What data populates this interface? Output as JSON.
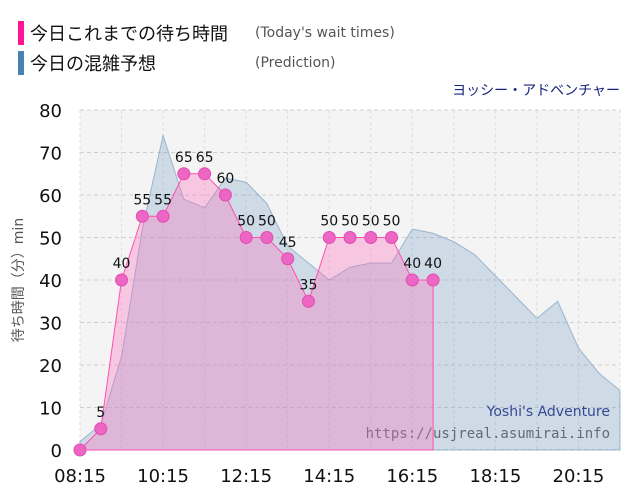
{
  "legend": {
    "today": {
      "label": "今日これまでの待ち時間",
      "note": "(Today's wait times)",
      "color": "#ff1493"
    },
    "prediction": {
      "label": "今日の混雑予想",
      "note": "(Prediction)",
      "color": "#4682b4"
    }
  },
  "attraction": "ヨッシー・アドベンチャー",
  "watermark": {
    "name": "Yoshi's Adventure",
    "url": "https://usjreal.asumirai.info"
  },
  "chart_data": {
    "type": "area",
    "ylabel": "待ち時間（分）min",
    "ylim": [
      0,
      80
    ],
    "xlim": [
      "08:15",
      "21:15"
    ],
    "x_ticks": [
      "08:15",
      "10:15",
      "12:15",
      "14:15",
      "16:15",
      "18:15",
      "20:15"
    ],
    "y_ticks": [
      0,
      10,
      20,
      30,
      40,
      50,
      60,
      70,
      80
    ],
    "grid": true,
    "series": [
      {
        "name": "今日これまでの待ち時間",
        "color": "#ff1493",
        "x": [
          "08:15",
          "08:45",
          "09:15",
          "09:45",
          "10:15",
          "10:45",
          "11:15",
          "11:45",
          "12:15",
          "12:45",
          "13:15",
          "13:45",
          "14:15",
          "14:45",
          "15:15",
          "15:45",
          "16:15",
          "16:45"
        ],
        "values": [
          0,
          5,
          40,
          55,
          55,
          65,
          65,
          60,
          50,
          50,
          45,
          35,
          50,
          50,
          50,
          50,
          40,
          40
        ]
      },
      {
        "name": "今日の混雑予想",
        "color": "#4682b4",
        "x": [
          "08:15",
          "08:45",
          "09:15",
          "09:45",
          "10:15",
          "10:45",
          "11:15",
          "11:45",
          "12:15",
          "12:45",
          "13:15",
          "13:45",
          "14:15",
          "14:45",
          "15:15",
          "15:45",
          "16:15",
          "16:45",
          "17:15",
          "17:45",
          "18:15",
          "18:45",
          "19:15",
          "19:45",
          "20:15",
          "20:45",
          "21:15"
        ],
        "values": [
          2,
          6,
          22,
          52,
          74,
          59,
          57,
          64,
          63,
          58,
          48,
          44,
          40,
          43,
          44,
          44,
          52,
          51,
          49,
          46,
          41,
          36,
          31,
          35,
          24,
          18,
          14
        ]
      }
    ]
  }
}
